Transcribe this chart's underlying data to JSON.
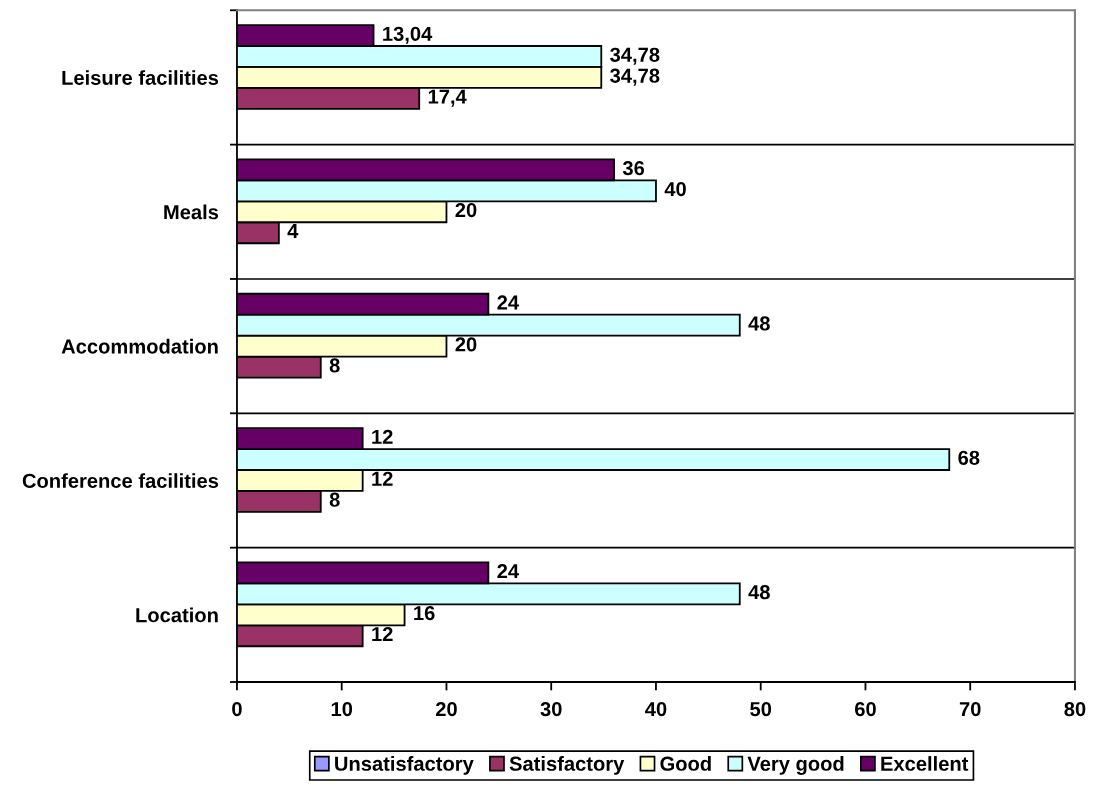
{
  "chart_data": {
    "type": "bar",
    "orientation": "horizontal",
    "categories": [
      "Leisure facilities",
      "Meals",
      "Accommodation",
      "Conference facilities",
      "Location"
    ],
    "series": [
      {
        "name": "Unsatisfactory",
        "color": "#9999ff",
        "values": [
          null,
          null,
          null,
          null,
          null
        ]
      },
      {
        "name": "Satisfactory",
        "color": "#993366",
        "values": [
          17.4,
          4,
          8,
          8,
          12
        ],
        "value_labels": [
          "17,4",
          "4",
          "8",
          "8",
          "12"
        ]
      },
      {
        "name": "Good",
        "color": "#ffffcc",
        "values": [
          34.78,
          20,
          20,
          12,
          16
        ],
        "value_labels": [
          "34,78",
          "20",
          "20",
          "12",
          "16"
        ]
      },
      {
        "name": "Very good",
        "color": "#ccffff",
        "values": [
          34.78,
          40,
          48,
          68,
          48
        ],
        "value_labels": [
          "34,78",
          "40",
          "48",
          "68",
          "48"
        ]
      },
      {
        "name": "Excellent",
        "color": "#660066",
        "values": [
          13.04,
          36,
          24,
          12,
          24
        ],
        "value_labels": [
          "13,04",
          "36",
          "24",
          "12",
          "24"
        ]
      }
    ],
    "xlim": [
      0,
      80
    ],
    "xticks": [
      0,
      10,
      20,
      30,
      40,
      50,
      60,
      70,
      80
    ],
    "grid": "y",
    "legend": "bottom"
  }
}
